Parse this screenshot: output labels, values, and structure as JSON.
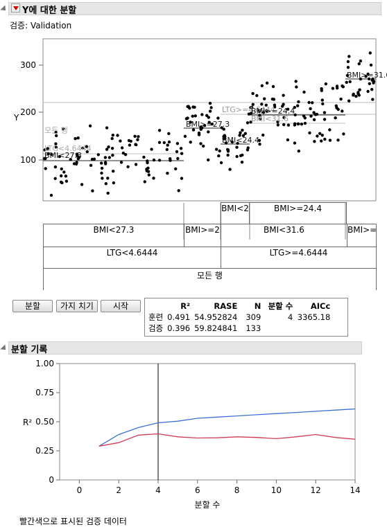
{
  "header": {
    "title": "Y에 대한 분할",
    "validation_label": "검증: Validation"
  },
  "scatter": {
    "y_label": "Y",
    "y_ticks": [
      "300",
      "200",
      "100"
    ],
    "leaf_labels": [
      "BMI<27.3",
      "BMI>=27.3",
      "BMI<24.4",
      "LTG>=4.6444",
      "BMI>=24.4",
      "BMI<31.6",
      "BMI>=31.6",
      "모든 행",
      "LTG<4.6444"
    ]
  },
  "tree": {
    "level1": [
      "BMI<2",
      "BMI>=24.4"
    ],
    "level2": [
      "BMI<27.3",
      "BMI>=2",
      "BMI<31.6",
      "BMI>="
    ],
    "level3": [
      "LTG<4.6444",
      "LTG>=4.6444"
    ],
    "root": "모든 행"
  },
  "buttons": {
    "split": "분할",
    "prune": "가지 치기",
    "go": "시작"
  },
  "stats": {
    "headers": [
      "",
      "R²",
      "RASE",
      "N",
      "분할 수",
      "AICc"
    ],
    "rows": [
      [
        "훈련",
        "0.491",
        "54.952824",
        "309",
        "4",
        "3365.18"
      ],
      [
        "검증",
        "0.396",
        "59.824841",
        "133",
        "",
        ""
      ]
    ]
  },
  "split_history": {
    "title": "분할 기록",
    "note": "빨간색으로 표시된 검증 데이터"
  },
  "chart_data": {
    "type": "line",
    "title": "",
    "xlabel": "분할 수",
    "ylabel": "R²",
    "xlim": [
      -1,
      14
    ],
    "ylim": [
      0,
      1
    ],
    "x_ticks": [
      "0",
      "2",
      "4",
      "6",
      "8",
      "10",
      "12",
      "14"
    ],
    "y_ticks": [
      "0",
      "0.25",
      "0.50",
      "0.75",
      "1.00"
    ],
    "vline_x": 4,
    "x": [
      1,
      2,
      3,
      4,
      5,
      6,
      7,
      8,
      9,
      10,
      11,
      12,
      13,
      14
    ],
    "series": [
      {
        "color": "#3a6fd8",
        "values": [
          0.29,
          0.39,
          0.45,
          0.491,
          0.505,
          0.53,
          0.54,
          0.55,
          0.56,
          0.57,
          0.58,
          0.59,
          0.6,
          0.61
        ]
      },
      {
        "color": "#d23a52",
        "values": [
          0.29,
          0.32,
          0.385,
          0.396,
          0.37,
          0.36,
          0.362,
          0.37,
          0.365,
          0.355,
          0.37,
          0.39,
          0.365,
          0.35
        ]
      }
    ]
  }
}
